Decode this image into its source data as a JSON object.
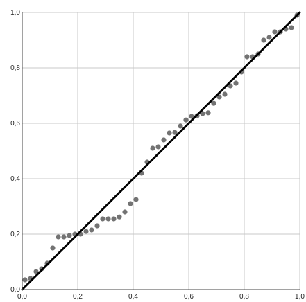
{
  "chart_data": {
    "type": "scatter",
    "title": "",
    "xlabel": "",
    "ylabel": "",
    "xlim": [
      0,
      1
    ],
    "ylim": [
      0,
      1
    ],
    "x_ticks": [
      "0,0",
      "0,2",
      "0,4",
      "0,6",
      "0,8",
      "1,0"
    ],
    "y_ticks": [
      "0,0",
      "0,2",
      "0,4",
      "0,6",
      "0,8",
      "1,0"
    ],
    "grid": true,
    "legend": "none",
    "reference_line": {
      "from": [
        0,
        0
      ],
      "to": [
        1,
        1
      ],
      "color": "#000000"
    },
    "point_color": "#737373",
    "points": [
      [
        0.01,
        0.035
      ],
      [
        0.03,
        0.04
      ],
      [
        0.05,
        0.065
      ],
      [
        0.07,
        0.075
      ],
      [
        0.09,
        0.095
      ],
      [
        0.11,
        0.15
      ],
      [
        0.13,
        0.19
      ],
      [
        0.15,
        0.19
      ],
      [
        0.17,
        0.195
      ],
      [
        0.19,
        0.2
      ],
      [
        0.21,
        0.2
      ],
      [
        0.23,
        0.21
      ],
      [
        0.25,
        0.215
      ],
      [
        0.27,
        0.23
      ],
      [
        0.29,
        0.255
      ],
      [
        0.31,
        0.255
      ],
      [
        0.33,
        0.255
      ],
      [
        0.35,
        0.262
      ],
      [
        0.37,
        0.28
      ],
      [
        0.39,
        0.31
      ],
      [
        0.41,
        0.325
      ],
      [
        0.43,
        0.42
      ],
      [
        0.45,
        0.46
      ],
      [
        0.47,
        0.51
      ],
      [
        0.49,
        0.515
      ],
      [
        0.51,
        0.54
      ],
      [
        0.53,
        0.565
      ],
      [
        0.55,
        0.567
      ],
      [
        0.57,
        0.59
      ],
      [
        0.59,
        0.612
      ],
      [
        0.61,
        0.625
      ],
      [
        0.63,
        0.627
      ],
      [
        0.65,
        0.635
      ],
      [
        0.67,
        0.638
      ],
      [
        0.69,
        0.672
      ],
      [
        0.71,
        0.695
      ],
      [
        0.73,
        0.705
      ],
      [
        0.75,
        0.735
      ],
      [
        0.77,
        0.745
      ],
      [
        0.79,
        0.785
      ],
      [
        0.81,
        0.84
      ],
      [
        0.83,
        0.84
      ],
      [
        0.85,
        0.85
      ],
      [
        0.87,
        0.9
      ],
      [
        0.89,
        0.91
      ],
      [
        0.91,
        0.93
      ],
      [
        0.93,
        0.93
      ],
      [
        0.95,
        0.94
      ],
      [
        0.97,
        0.945
      ],
      [
        0.99,
        0.99
      ]
    ]
  }
}
